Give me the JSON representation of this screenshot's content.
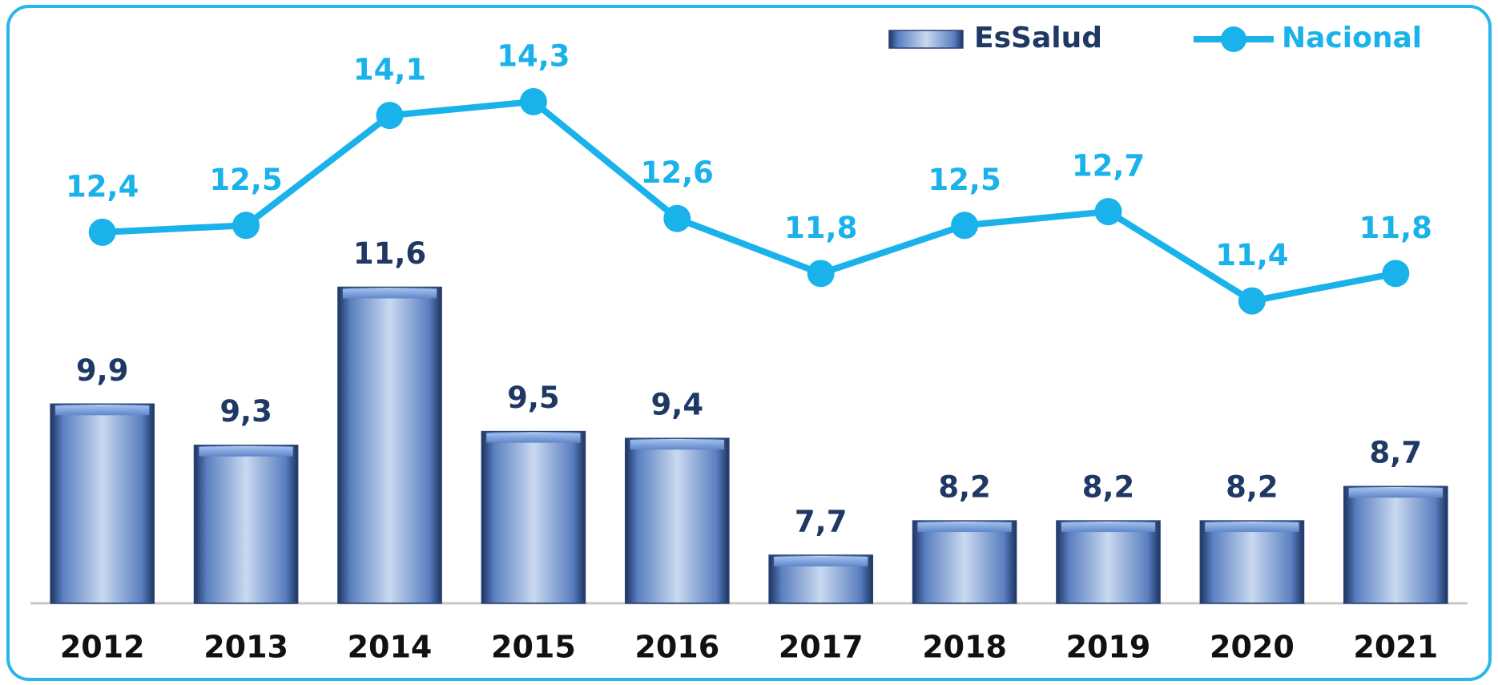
{
  "chart_data": {
    "type": "bar",
    "categories": [
      "2012",
      "2013",
      "2014",
      "2015",
      "2016",
      "2017",
      "2018",
      "2019",
      "2020",
      "2021"
    ],
    "series": [
      {
        "name": "EsSalud",
        "type": "bar",
        "color": "#4a6fae",
        "values": [
          9.9,
          9.3,
          11.6,
          9.5,
          9.4,
          7.7,
          8.2,
          8.2,
          8.2,
          8.7
        ],
        "value_labels": [
          "9,9",
          "9,3",
          "11,6",
          "9,5",
          "9,4",
          "7,7",
          "8,2",
          "8,2",
          "8,2",
          "8,7"
        ]
      },
      {
        "name": "Nacional",
        "type": "line",
        "color": "#19b2ea",
        "values": [
          12.4,
          12.5,
          14.1,
          14.3,
          12.6,
          11.8,
          12.5,
          12.7,
          11.4,
          11.8
        ],
        "value_labels": [
          "12,4",
          "12,5",
          "14,1",
          "14,3",
          "12,6",
          "11,8",
          "12,5",
          "12,7",
          "11,4",
          "11,8"
        ]
      }
    ],
    "ylim": [
      7,
      15.5
    ],
    "legend": "top-right"
  }
}
